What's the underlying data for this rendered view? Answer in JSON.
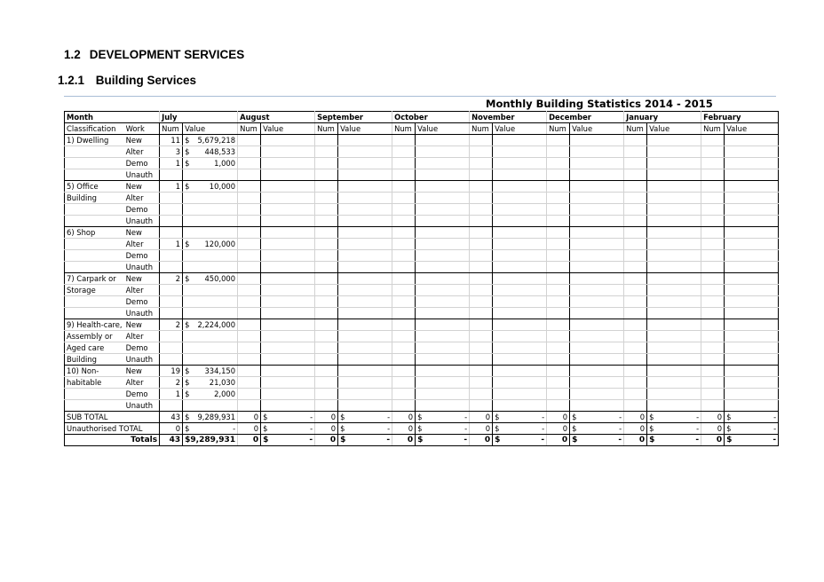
{
  "heading1": {
    "number": "1.2",
    "text": "DEVELOPMENT SERVICES"
  },
  "heading2": {
    "number": "1.2.1",
    "text": "Building Services"
  },
  "table": {
    "title": "Monthly Building Statistics 2014 - 2015",
    "month_label": "Month",
    "classification_label": "Classification",
    "work_label": "Work",
    "num_label": "Num",
    "value_label": "Value",
    "months": [
      "July",
      "August",
      "September",
      "October",
      "November",
      "December",
      "January",
      "February"
    ],
    "groups": [
      {
        "lines": [
          "1) Dwelling",
          "",
          "",
          ""
        ],
        "rows": [
          {
            "work": "New",
            "num": "11",
            "value": "5,679,218"
          },
          {
            "work": "Alter",
            "num": "3",
            "value": "448,533"
          },
          {
            "work": "Demo",
            "num": "1",
            "value": "1,000"
          },
          {
            "work": "Unauth",
            "num": "",
            "value": ""
          }
        ]
      },
      {
        "lines": [
          "5) Office",
          "Building",
          "",
          ""
        ],
        "rows": [
          {
            "work": "New",
            "num": "1",
            "value": "10,000"
          },
          {
            "work": "Alter",
            "num": "",
            "value": ""
          },
          {
            "work": "Demo",
            "num": "",
            "value": ""
          },
          {
            "work": "Unauth",
            "num": "",
            "value": ""
          }
        ]
      },
      {
        "lines": [
          "6) Shop",
          "",
          "",
          ""
        ],
        "rows": [
          {
            "work": "New",
            "num": "",
            "value": ""
          },
          {
            "work": "Alter",
            "num": "1",
            "value": "120,000"
          },
          {
            "work": "Demo",
            "num": "",
            "value": ""
          },
          {
            "work": "Unauth",
            "num": "",
            "value": ""
          }
        ]
      },
      {
        "lines": [
          "7) Carpark or",
          "Storage",
          "",
          ""
        ],
        "rows": [
          {
            "work": "New",
            "num": "2",
            "value": "450,000"
          },
          {
            "work": "Alter",
            "num": "",
            "value": ""
          },
          {
            "work": "Demo",
            "num": "",
            "value": ""
          },
          {
            "work": "Unauth",
            "num": "",
            "value": ""
          }
        ]
      },
      {
        "lines": [
          "9) Health-care,",
          "Assembly or",
          "Aged care",
          "Building"
        ],
        "rows": [
          {
            "work": "New",
            "num": "2",
            "value": "2,224,000"
          },
          {
            "work": "Alter",
            "num": "",
            "value": ""
          },
          {
            "work": "Demo",
            "num": "",
            "value": ""
          },
          {
            "work": "Unauth",
            "num": "",
            "value": ""
          }
        ]
      },
      {
        "lines": [
          "10) Non-",
          "habitable",
          "",
          ""
        ],
        "rows": [
          {
            "work": "New",
            "num": "19",
            "value": "334,150"
          },
          {
            "work": "Alter",
            "num": "2",
            "value": "21,030"
          },
          {
            "work": "Demo",
            "num": "1",
            "value": "2,000"
          },
          {
            "work": "Unauth",
            "num": "",
            "value": ""
          }
        ]
      }
    ],
    "currency": "$",
    "dash": "-",
    "subtotal": {
      "label": "SUB TOTAL",
      "july_num": "43",
      "july_value": "9,289,931",
      "other_num": "0"
    },
    "unauthorised": {
      "label": "Unauthorised TOTAL",
      "july_num": "0",
      "other_num": "0"
    },
    "totals": {
      "label": "Totals",
      "july_num": "43",
      "july_value": "9,289,931",
      "other_num": "0"
    }
  }
}
